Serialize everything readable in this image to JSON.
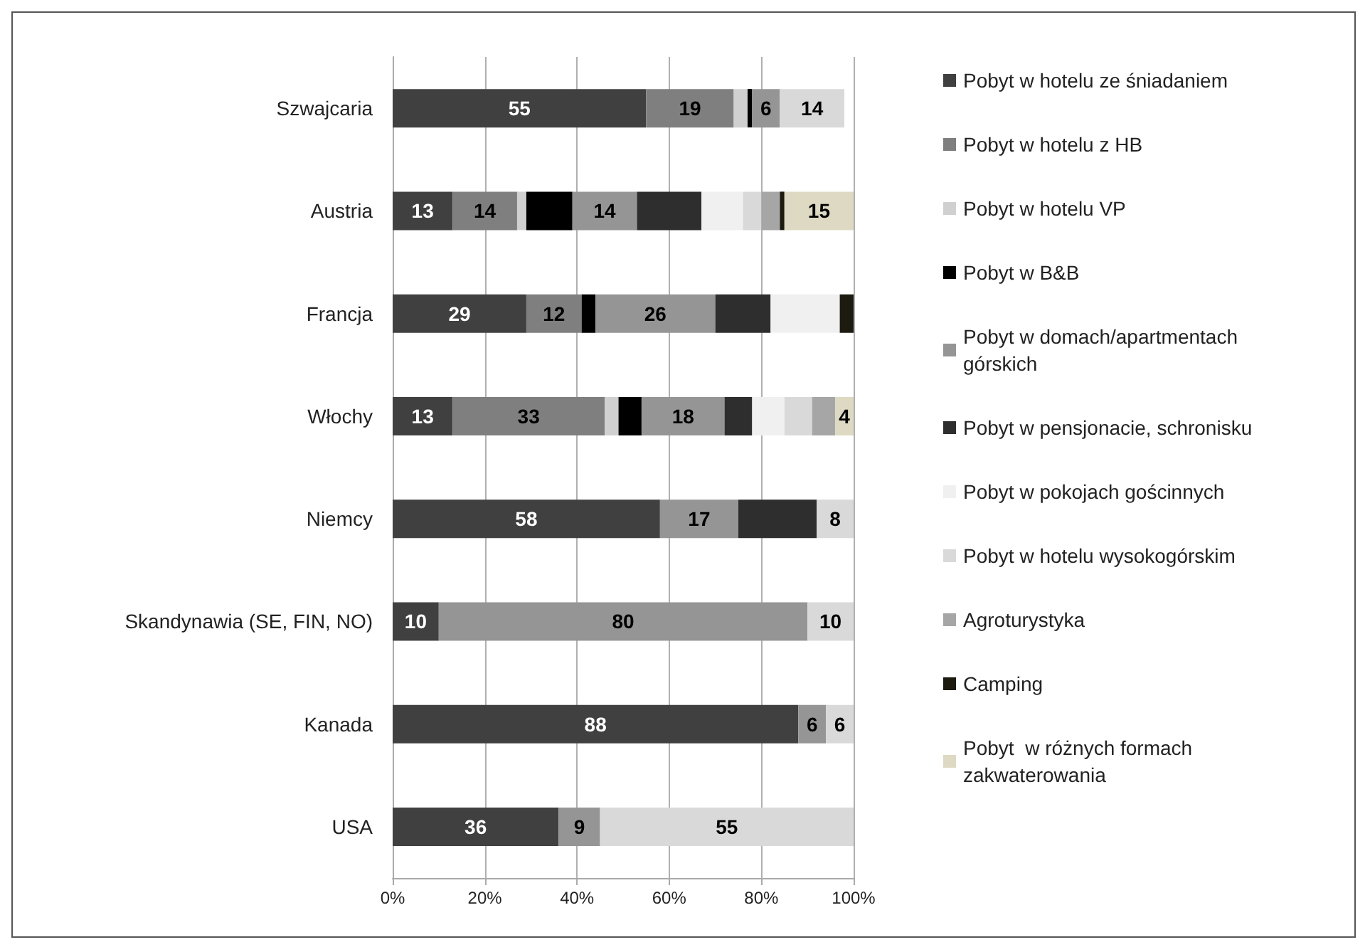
{
  "chart_data": {
    "type": "bar",
    "orientation": "horizontal",
    "stacked": true,
    "categories": [
      "Szwajcaria",
      "Austria",
      "Francja",
      "Włochy",
      "Niemcy",
      "Skandynawia (SE, FIN, NO)",
      "Kanada",
      "USA"
    ],
    "series": [
      {
        "name": "Pobyt w hotelu ze śniadaniem",
        "color": "#404040",
        "values": [
          55,
          13,
          29,
          13,
          58,
          10,
          88,
          36
        ],
        "value_labels": [
          "55",
          "13",
          "29",
          "13",
          "58",
          "10",
          "88",
          "36"
        ]
      },
      {
        "name": "Pobyt w hotelu z HB",
        "color": "#7f7f7f",
        "values": [
          19,
          14,
          12,
          33,
          null,
          null,
          null,
          null
        ],
        "value_labels": [
          "19",
          "14",
          "12",
          "33",
          null,
          null,
          null,
          null
        ]
      },
      {
        "name": "Pobyt w hotelu VP",
        "color": "#d0d0d0",
        "values": [
          3,
          2,
          null,
          3,
          null,
          null,
          null,
          null
        ]
      },
      {
        "name": "Pobyt w B&B",
        "color": "#000000",
        "values": [
          1,
          10,
          3,
          5,
          null,
          null,
          null,
          null
        ]
      },
      {
        "name": "Pobyt w domach/apartmentach górskich",
        "color": "#959595",
        "values": [
          6,
          14,
          26,
          18,
          17,
          80,
          6,
          9
        ],
        "value_labels": [
          "6",
          "14",
          "26",
          "18",
          "17",
          "80",
          "6",
          "9"
        ]
      },
      {
        "name": "Pobyt w pensjonacie, schronisku",
        "color": "#2e2e2e",
        "values": [
          null,
          14,
          12,
          6,
          17,
          null,
          null,
          null
        ]
      },
      {
        "name": "Pobyt w pokojach gościnnych",
        "color": "#f0f0f0",
        "values": [
          null,
          9,
          15,
          7,
          null,
          null,
          null,
          null
        ]
      },
      {
        "name": "Pobyt w hotelu wysokogórskim",
        "color": "#d9d9d9",
        "values": [
          14,
          4,
          null,
          6,
          8,
          10,
          6,
          55
        ],
        "value_labels": [
          "14",
          null,
          null,
          null,
          "8",
          "10",
          "6",
          "55"
        ]
      },
      {
        "name": "Agroturystyka",
        "color": "#a6a6a6",
        "values": [
          null,
          4,
          null,
          5,
          null,
          null,
          null,
          null
        ]
      },
      {
        "name": "Camping",
        "color": "#1d1b10",
        "values": [
          null,
          1,
          3,
          null,
          null,
          null,
          null,
          null
        ]
      },
      {
        "name": "Pobyt  w różnych formach zakwaterowania",
        "color": "#ddd9c3",
        "values": [
          null,
          15,
          null,
          4,
          null,
          null,
          null,
          null
        ],
        "value_labels": [
          null,
          "15",
          null,
          "4",
          null,
          null,
          null,
          null
        ]
      }
    ],
    "xlim": [
      0,
      100
    ],
    "xticks": [
      {
        "value": 0,
        "label": "0%"
      },
      {
        "value": 20,
        "label": "20%"
      },
      {
        "value": 40,
        "label": "40%"
      },
      {
        "value": 60,
        "label": "60%"
      },
      {
        "value": 80,
        "label": "80%"
      },
      {
        "value": 100,
        "label": "100%"
      }
    ],
    "grid": "x",
    "legend": "right"
  }
}
